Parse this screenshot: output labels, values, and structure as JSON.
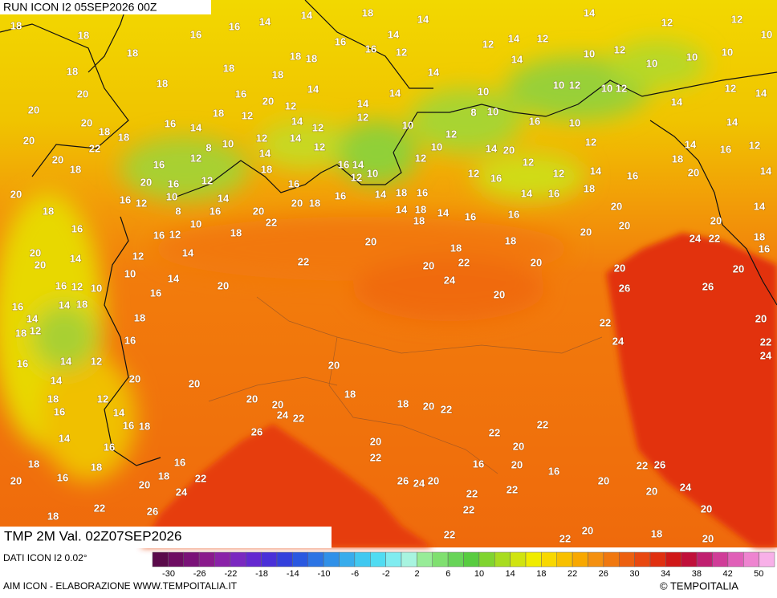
{
  "header": {
    "title": "RUN ICON I2 05SEP2026 00Z"
  },
  "map": {
    "labels": [
      18,
      18,
      16,
      16,
      14,
      14,
      18,
      14,
      14,
      14,
      12,
      12,
      10,
      18,
      16,
      16,
      12,
      12,
      14,
      12,
      18,
      18,
      18,
      18,
      14,
      10,
      12,
      10,
      10,
      10,
      18,
      18,
      20,
      16,
      20,
      14,
      14,
      14,
      14,
      10,
      10,
      12,
      10,
      12,
      12,
      14,
      14,
      20,
      18,
      12,
      12,
      14,
      12,
      12,
      8,
      10,
      16,
      14,
      20,
      18,
      18,
      20,
      22,
      10,
      12,
      16,
      10,
      14,
      12,
      14,
      12,
      14,
      8,
      10,
      12,
      16,
      20,
      18,
      10,
      12,
      14,
      20,
      12,
      14,
      16,
      12,
      18,
      16,
      14,
      10,
      12,
      12,
      16,
      12,
      12,
      14,
      16,
      18,
      20,
      14,
      20,
      20,
      16,
      12,
      16,
      12,
      10,
      14,
      16,
      18,
      16,
      14,
      18,
      16,
      14,
      16,
      18,
      18,
      8,
      16,
      10,
      20,
      22,
      20,
      14,
      18,
      18,
      14,
      16,
      16,
      20,
      20,
      14,
      16,
      16,
      12,
      18,
      18,
      20,
      20,
      24,
      22,
      18,
      20,
      20,
      14,
      12,
      14,
      20,
      18,
      22,
      20,
      22,
      20,
      24,
      10,
      14,
      16,
      12,
      10,
      20,
      26,
      26,
      20,
      16,
      20,
      16,
      16,
      14,
      18,
      14,
      18,
      18,
      12,
      20,
      22,
      20,
      24,
      16,
      14,
      12,
      16,
      22,
      24,
      20,
      14,
      20,
      20,
      18,
      12,
      20,
      20,
      18,
      18,
      20,
      22,
      16,
      14,
      24,
      22,
      16,
      18,
      14,
      26,
      22,
      22,
      16,
      20,
      20,
      22,
      16,
      18,
      18,
      16,
      20,
      16,
      22,
      26,
      20,
      16,
      18,
      20,
      22,
      26,
      24,
      20,
      20,
      24,
      22,
      22,
      20,
      24,
      22,
      26,
      22,
      20,
      18,
      22,
      22,
      20,
      18,
      20
    ]
  },
  "footer": {
    "variable": "TMP 2M Val. 02Z07SEP2026",
    "source": "DATI ICON I2 0.02°",
    "credit": "AIM ICON - ELABORAZIONE WWW.TEMPOITALIA.IT",
    "copyright": "© TEMPOITALIA"
  },
  "colorbar": {
    "ticks": [
      -30,
      -26,
      -22,
      -18,
      -14,
      -10,
      -6,
      -2,
      2,
      6,
      10,
      14,
      18,
      22,
      26,
      30,
      34,
      38,
      42,
      50
    ]
  }
}
